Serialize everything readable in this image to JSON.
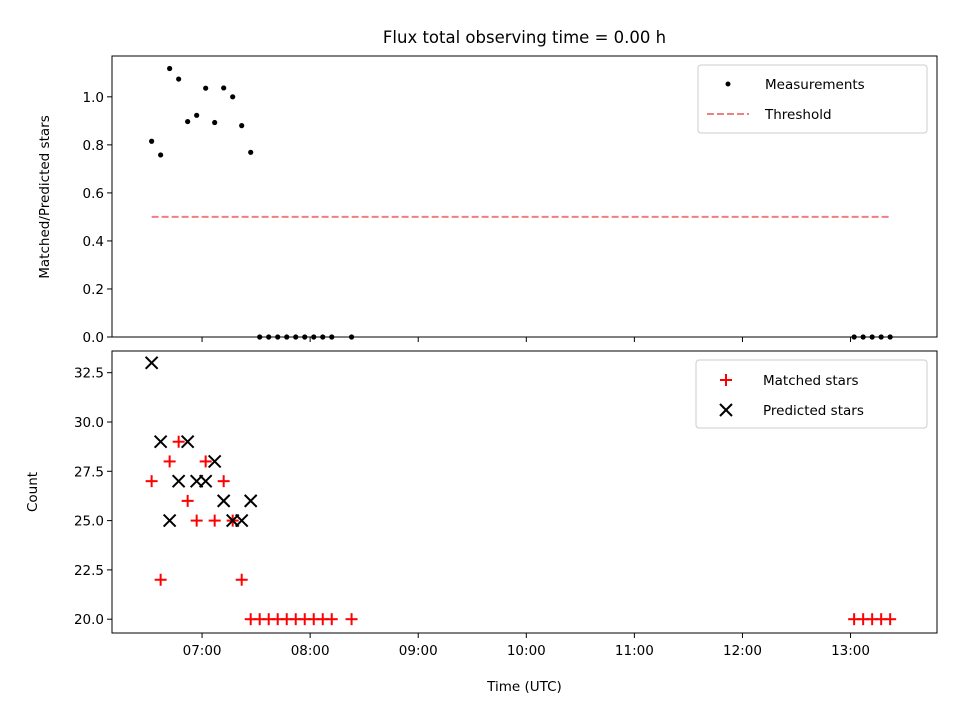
{
  "chart_data": [
    {
      "type": "scatter",
      "title": "Flux total observing time = 0.00 h",
      "xlabel": "",
      "ylabel": "Matched/Predicted stars",
      "xlim": [
        "06:10",
        "13:48"
      ],
      "ylim": [
        0,
        1.17
      ],
      "yticks": [
        0.0,
        0.2,
        0.4,
        0.6,
        0.8,
        1.0
      ],
      "ytick_labels": [
        "0.0",
        "0.2",
        "0.4",
        "0.6",
        "0.8",
        "1.0"
      ],
      "xticks": [
        "07:00",
        "08:00",
        "09:00",
        "10:00",
        "11:00",
        "12:00",
        "13:00"
      ],
      "grid": false,
      "legend": "top-right",
      "series": [
        {
          "name": "Measurements",
          "kind": "scatter",
          "marker": "dot",
          "color": "#000000",
          "points": [
            [
              "06:32",
              0.815
            ],
            [
              "06:37",
              0.758
            ],
            [
              "06:42",
              1.118
            ],
            [
              "06:47",
              1.074
            ],
            [
              "06:52",
              0.897
            ],
            [
              "06:57",
              0.923
            ],
            [
              "07:02",
              1.036
            ],
            [
              "07:07",
              0.893
            ],
            [
              "07:12",
              1.037
            ],
            [
              "07:17",
              1.0
            ],
            [
              "07:22",
              0.88
            ],
            [
              "07:27",
              0.769
            ],
            [
              "07:32",
              0.0
            ],
            [
              "07:37",
              0.0
            ],
            [
              "07:42",
              0.0
            ],
            [
              "07:47",
              0.0
            ],
            [
              "07:52",
              0.0
            ],
            [
              "07:57",
              0.0
            ],
            [
              "08:02",
              0.0
            ],
            [
              "08:07",
              0.0
            ],
            [
              "08:12",
              0.0
            ],
            [
              "08:23",
              0.0
            ],
            [
              "13:02",
              0.0
            ],
            [
              "13:07",
              0.0
            ],
            [
              "13:12",
              0.0
            ],
            [
              "13:17",
              0.0
            ],
            [
              "13:22",
              0.0
            ]
          ]
        },
        {
          "name": "Threshold",
          "kind": "line",
          "style": "dashed",
          "color": "#f08080",
          "points": [
            [
              "06:32",
              0.5
            ],
            [
              "13:22",
              0.5
            ]
          ]
        }
      ]
    },
    {
      "type": "scatter",
      "title": "",
      "xlabel": "Time (UTC)",
      "ylabel": "Count",
      "xlim": [
        "06:10",
        "13:48"
      ],
      "ylim": [
        19.3,
        33.6
      ],
      "yticks": [
        20.0,
        22.5,
        25.0,
        27.5,
        30.0,
        32.5
      ],
      "ytick_labels": [
        "20.0",
        "22.5",
        "25.0",
        "27.5",
        "30.0",
        "32.5"
      ],
      "xticks": [
        "07:00",
        "08:00",
        "09:00",
        "10:00",
        "11:00",
        "12:00",
        "13:00"
      ],
      "grid": false,
      "legend": "top-right",
      "series": [
        {
          "name": "Matched stars",
          "kind": "scatter",
          "marker": "plus",
          "color": "#ff0000",
          "points": [
            [
              "06:32",
              27
            ],
            [
              "06:37",
              22
            ],
            [
              "06:42",
              28
            ],
            [
              "06:47",
              29
            ],
            [
              "06:52",
              26
            ],
            [
              "06:57",
              25
            ],
            [
              "07:02",
              28
            ],
            [
              "07:07",
              25
            ],
            [
              "07:12",
              27
            ],
            [
              "07:17",
              25
            ],
            [
              "07:22",
              22
            ],
            [
              "07:27",
              20
            ],
            [
              "07:32",
              20
            ],
            [
              "07:37",
              20
            ],
            [
              "07:42",
              20
            ],
            [
              "07:47",
              20
            ],
            [
              "07:52",
              20
            ],
            [
              "07:57",
              20
            ],
            [
              "08:02",
              20
            ],
            [
              "08:07",
              20
            ],
            [
              "08:12",
              20
            ],
            [
              "08:23",
              20
            ],
            [
              "13:02",
              20
            ],
            [
              "13:07",
              20
            ],
            [
              "13:12",
              20
            ],
            [
              "13:17",
              20
            ],
            [
              "13:22",
              20
            ]
          ]
        },
        {
          "name": "Predicted stars",
          "kind": "scatter",
          "marker": "x",
          "color": "#000000",
          "points": [
            [
              "06:32",
              33
            ],
            [
              "06:37",
              29
            ],
            [
              "06:42",
              25
            ],
            [
              "06:47",
              27
            ],
            [
              "06:52",
              29
            ],
            [
              "06:57",
              27
            ],
            [
              "07:02",
              27
            ],
            [
              "07:07",
              28
            ],
            [
              "07:12",
              26
            ],
            [
              "07:17",
              25
            ],
            [
              "07:22",
              25
            ],
            [
              "07:27",
              26
            ]
          ]
        }
      ]
    }
  ]
}
